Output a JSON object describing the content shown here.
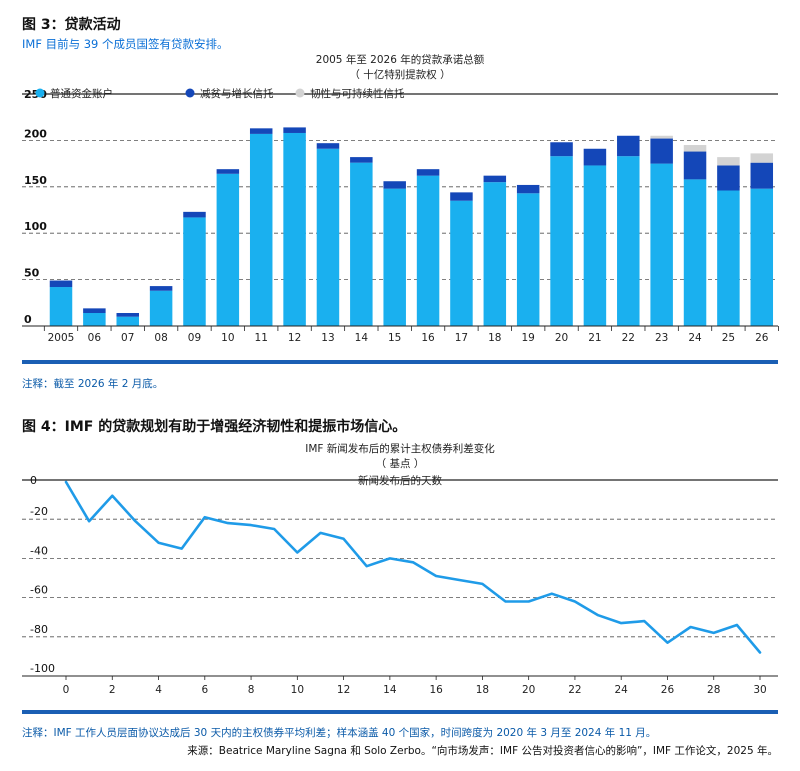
{
  "figure3": {
    "title": "图 3：贷款活动",
    "subtitle": "IMF 目前与 39 个成员国签有贷款安排。",
    "note": "注释：截至 2026 年 2 月底。"
  },
  "figure4": {
    "title": "图 4：IMF 的贷款规划有助于增强经济韧性和提振市场信心。",
    "note": "注释：IMF 工作人员层面协议达成后 30 天内的主权债券平均利差；样本涵盖 40 个国家，时间跨度为 2020 年 3 月至 2024 年 11 月。",
    "source": "来源：Beatrice Maryline Sagna 和 Solo Zerbo。“向市场发声：IMF 公告对投资者信心的影响”，IMF 工作论文，2025 年。"
  },
  "colors": {
    "gra": "#1ab0ef",
    "prgt": "#1447b8",
    "rst": "#d3d3d3",
    "line": "#1f9be8",
    "rule": "#1a5fb4"
  },
  "chart_data": [
    {
      "type": "bar",
      "stacked": true,
      "title": "2005 年至 2026 年的贷款承诺总额",
      "subtitle": "（ 十亿特别提款权 ）",
      "categories": [
        "2005",
        "06",
        "07",
        "08",
        "09",
        "10",
        "11",
        "12",
        "13",
        "14",
        "15",
        "16",
        "17",
        "18",
        "19",
        "20",
        "21",
        "22",
        "23",
        "24",
        "25",
        "26"
      ],
      "series": [
        {
          "name": "普通资金账户",
          "values": [
            42,
            14,
            10,
            38,
            117,
            164,
            207,
            208,
            191,
            176,
            148,
            162,
            135,
            155,
            143,
            183,
            173,
            183,
            175,
            158,
            146,
            148
          ]
        },
        {
          "name": "减贫与增长信托",
          "values": [
            7,
            5,
            4,
            5,
            6,
            5,
            6,
            6,
            6,
            6,
            8,
            7,
            9,
            7,
            9,
            15,
            18,
            22,
            27,
            30,
            27,
            28
          ]
        },
        {
          "name": "韧性与可持续性信托",
          "values": [
            0,
            0,
            0,
            0,
            0,
            0,
            0,
            0,
            0,
            0,
            0,
            0,
            0,
            0,
            0,
            0,
            0,
            0,
            3,
            7,
            9,
            10
          ]
        }
      ],
      "ylim": [
        0,
        250
      ],
      "yticks": [
        0,
        50,
        100,
        150,
        200,
        250
      ],
      "legend": "top-left"
    },
    {
      "type": "line",
      "title": "IMF 新闻发布后的累计主权债券利差变化",
      "subtitle": "（ 基点 ）",
      "xlabel": "新闻发布后的天数",
      "x": [
        0,
        1,
        2,
        3,
        4,
        5,
        6,
        7,
        8,
        9,
        10,
        11,
        12,
        13,
        14,
        15,
        16,
        17,
        18,
        19,
        20,
        21,
        22,
        23,
        24,
        25,
        26,
        27,
        28,
        29,
        30
      ],
      "series": [
        {
          "values": [
            -1,
            -21,
            -8,
            -21,
            -32,
            -35,
            -19,
            -22,
            -23,
            -25,
            -37,
            -27,
            -30,
            -44,
            -40,
            -42,
            -49,
            -51,
            -53,
            -62,
            -62,
            -58,
            -62,
            -69,
            -73,
            -72,
            -83,
            -75,
            -78,
            -74,
            -88
          ]
        }
      ],
      "ylim": [
        -100,
        0
      ],
      "yticks": [
        0,
        -20,
        -40,
        -60,
        -80,
        -100
      ],
      "xticks": [
        0,
        2,
        4,
        6,
        8,
        10,
        12,
        14,
        16,
        18,
        20,
        22,
        24,
        26,
        28,
        30
      ]
    }
  ]
}
